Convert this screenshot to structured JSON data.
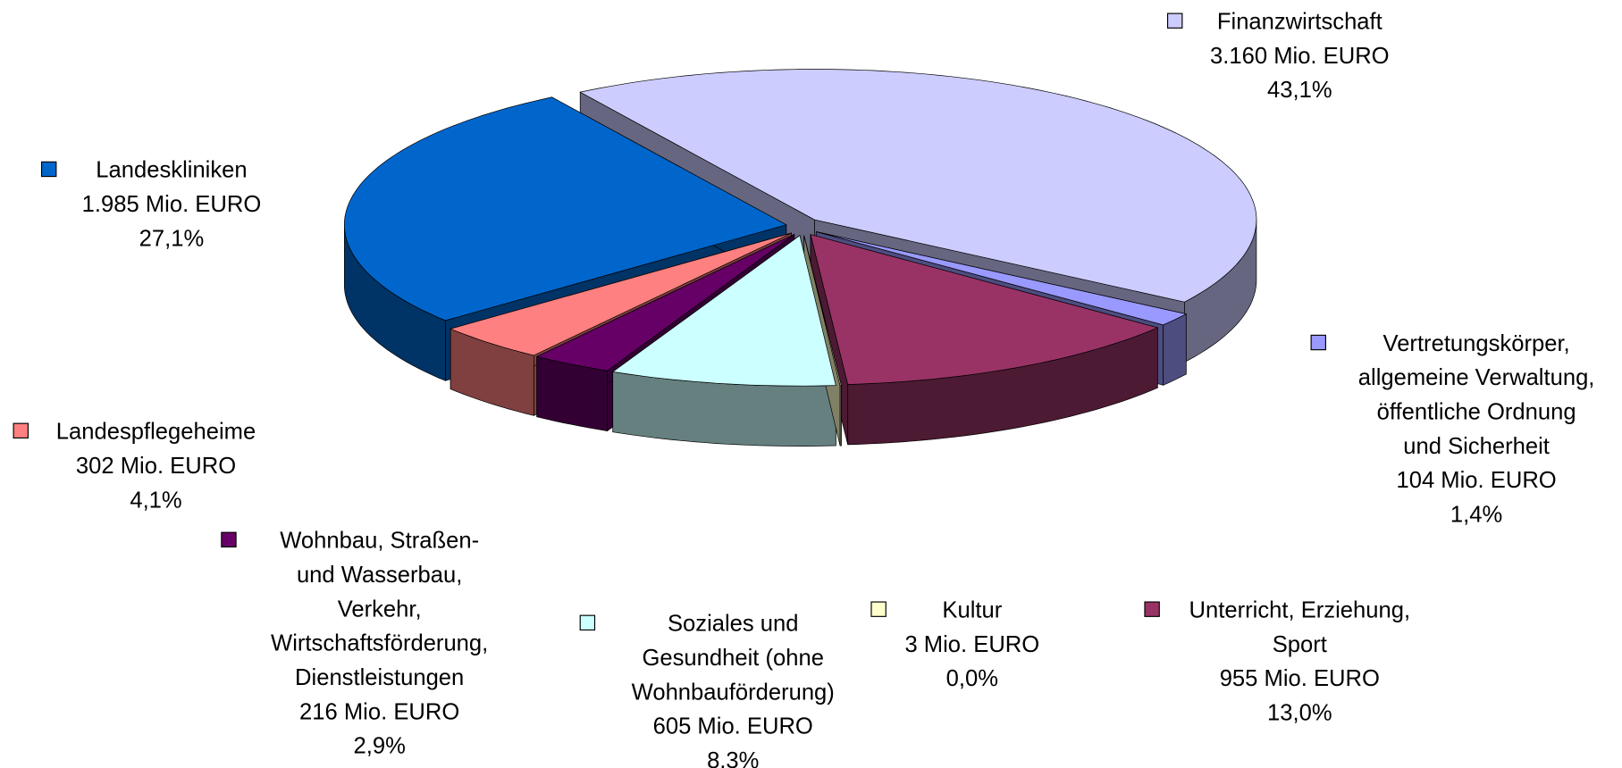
{
  "chart_data": {
    "type": "pie",
    "categories": [
      "Finanzwirtschaft",
      "Vertretungskörper,\nallgemeine Verwaltung,\nöffentliche Ordnung\nund Sicherheit",
      "Unterricht, Erziehung,\nSport",
      "Kultur",
      "Soziales und\nGesundheit (ohne\nWohnbauförderung)",
      "Wohnbau, Straßen-\nund Wasserbau,\nVerkehr,\nWirtschaftsförderung,\nDienstleistungen",
      "Landespflegeheime",
      "Landeskliniken"
    ],
    "values": [
      3160,
      104,
      955,
      3,
      605,
      216,
      302,
      1985
    ],
    "value_labels": [
      "3.160 Mio. EURO",
      "104 Mio. EURO",
      "955 Mio. EURO",
      "3 Mio. EURO",
      "605 Mio. EURO",
      "216 Mio. EURO",
      "302 Mio. EURO",
      "1.985 Mio. EURO"
    ],
    "percentages": [
      43.1,
      1.4,
      13.0,
      0.0,
      8.3,
      2.9,
      4.1,
      27.1
    ],
    "percentage_labels": [
      "43,1%",
      "1,4%",
      "13,0%",
      "0,0%",
      "8,3%",
      "2,9%",
      "4,1%",
      "27,1%"
    ],
    "colors": [
      "#ccccff",
      "#9999ff",
      "#993366",
      "#ffffcc",
      "#ccffff",
      "#660066",
      "#ff8080",
      "#0066cc"
    ]
  }
}
